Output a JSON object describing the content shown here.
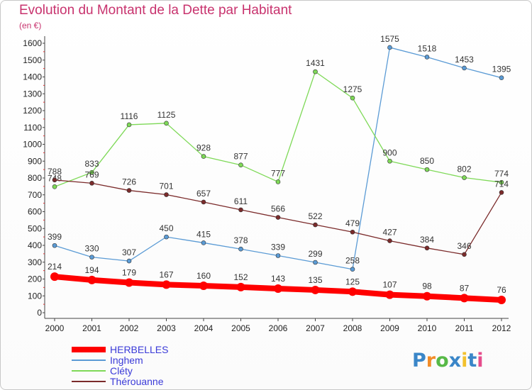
{
  "chart_data": {
    "type": "line",
    "title": "Evolution du Montant de la Dette par Habitant",
    "subtitle": "(en €)",
    "x": [
      "2000",
      "2001",
      "2002",
      "2003",
      "2004",
      "2005",
      "2006",
      "2007",
      "2008",
      "2009",
      "2010",
      "2011",
      "2012"
    ],
    "ylim": [
      0,
      1600
    ],
    "yticks": [
      0,
      100,
      200,
      300,
      400,
      500,
      600,
      700,
      800,
      900,
      1000,
      1100,
      1200,
      1300,
      1400,
      1500,
      1600
    ],
    "grid": false,
    "legend_position": "bottom-left",
    "series": [
      {
        "name": "HERBELLES",
        "color": "#ff0000",
        "values": [
          214,
          194,
          179,
          167,
          160,
          152,
          143,
          135,
          125,
          107,
          98,
          87,
          76
        ]
      },
      {
        "name": "Inghem",
        "color": "#5b9bd5",
        "values": [
          399,
          330,
          307,
          450,
          415,
          378,
          339,
          299,
          258,
          1575,
          1518,
          1453,
          1395
        ]
      },
      {
        "name": "Cléty",
        "color": "#7ed957",
        "values": [
          748,
          833,
          1116,
          1125,
          928,
          877,
          777,
          1431,
          1275,
          900,
          850,
          802,
          774
        ]
      },
      {
        "name": "Thérouanne",
        "color": "#7b2b2b",
        "values": [
          788,
          769,
          726,
          701,
          657,
          611,
          566,
          522,
          479,
          427,
          384,
          346,
          714
        ]
      }
    ]
  },
  "logo": {
    "letters": [
      "P",
      "r",
      "o",
      "x",
      "i",
      "t",
      "i"
    ],
    "colors": [
      "#3a86c8",
      "#f28c28",
      "#57b947",
      "#3a86c8",
      "#f2c12e",
      "#3a86c8",
      "#e64c8c"
    ]
  }
}
